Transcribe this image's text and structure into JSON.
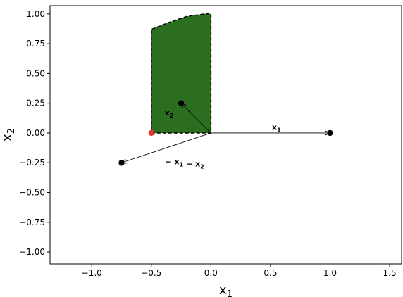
{
  "chart_data": {
    "type": "scatter",
    "title": "",
    "xlabel": {
      "base": "x",
      "sub": "1"
    },
    "ylabel": {
      "base": "x",
      "sub": "2"
    },
    "xlim": [
      -1.35,
      1.6
    ],
    "ylim": [
      -1.1,
      1.07
    ],
    "xticks": [
      -1.0,
      -0.5,
      0.0,
      0.5,
      1.0,
      1.5
    ],
    "xtick_labels": [
      "−1.0",
      "−0.5",
      "0.0",
      "0.5",
      "1.0",
      "1.5"
    ],
    "yticks": [
      -1.0,
      -0.75,
      -0.5,
      -0.25,
      0.0,
      0.25,
      0.5,
      0.75,
      1.0
    ],
    "ytick_labels": [
      "−1.00",
      "−0.75",
      "−0.50",
      "−0.25",
      "0.00",
      "0.25",
      "0.50",
      "0.75",
      "1.00"
    ],
    "grid": false,
    "region": {
      "color": "#2b6e1f",
      "points": [
        [
          -0.5,
          0.0
        ],
        [
          0.0,
          0.0
        ],
        [
          0.0,
          1.0
        ],
        [
          -0.05,
          1.0
        ],
        [
          -0.2,
          0.98
        ],
        [
          -0.35,
          0.93
        ],
        [
          -0.5,
          0.87
        ]
      ]
    },
    "points": [
      {
        "name": "x1",
        "x": 1.0,
        "y": 0.0,
        "color": "#000000"
      },
      {
        "name": "x2",
        "x": -0.25,
        "y": 0.25,
        "color": "#000000"
      },
      {
        "name": "-x1-x2",
        "x": -0.75,
        "y": -0.25,
        "color": "#000000"
      },
      {
        "name": "red-point",
        "x": -0.5,
        "y": 0.0,
        "color": "#e8382f"
      }
    ],
    "vectors": [
      {
        "to": [
          1.0,
          0.0
        ],
        "label": [
          {
            "t": "x",
            "sub": "1"
          }
        ],
        "label_pos": [
          0.55,
          0.05
        ]
      },
      {
        "to": [
          -0.25,
          0.25
        ],
        "label": [
          {
            "t": "x",
            "sub": "2"
          }
        ],
        "label_pos": [
          -0.35,
          0.17
        ]
      },
      {
        "to": [
          -0.75,
          -0.25
        ],
        "label": [
          {
            "t": "− x",
            "sub": "1"
          },
          {
            "t": " − x",
            "sub": "2"
          }
        ],
        "label_pos": [
          -0.22,
          -0.24
        ]
      }
    ]
  }
}
